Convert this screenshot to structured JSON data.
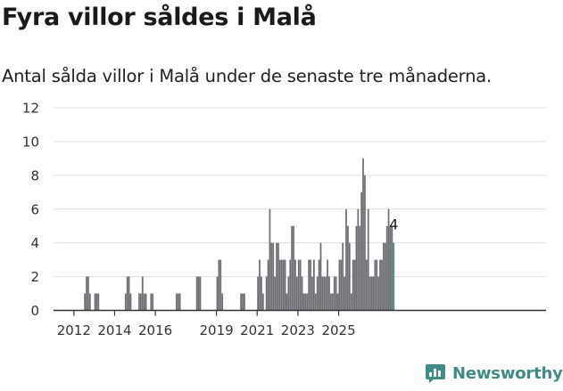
{
  "title": "Fyra villor såldes i Malå",
  "subtitle": "Antal sålda villor i Malå under de senaste tre månaderna.",
  "brand": {
    "name": "Newsworthy",
    "icon": "bar-chart-speech-bubble-icon"
  },
  "colors": {
    "bar": "#6d6e73",
    "highlight": "#3f8b85",
    "grid": "#dddddd",
    "axis": "#333333"
  },
  "chart_data": {
    "type": "bar",
    "x_start": "2011-01",
    "x_step": "month",
    "ylim": [
      0,
      12
    ],
    "y_ticks": [
      0,
      2,
      4,
      6,
      8,
      10,
      12
    ],
    "x_ticks": [
      "2012",
      "2014",
      "2016",
      "2019",
      "2021",
      "2023",
      "2025"
    ],
    "x_tick_positions": [
      "2012-01",
      "2014-01",
      "2016-01",
      "2019-01",
      "2021-01",
      "2023-01",
      "2025-01"
    ],
    "grid": true,
    "values": [
      0,
      0,
      0,
      0,
      0,
      0,
      0,
      0,
      0,
      0,
      0,
      0,
      0,
      0,
      0,
      0,
      0,
      0,
      1,
      2,
      2,
      1,
      0,
      0,
      1,
      1,
      1,
      0,
      0,
      0,
      0,
      0,
      0,
      0,
      0,
      0,
      0,
      0,
      0,
      0,
      0,
      0,
      1,
      2,
      2,
      1,
      0,
      0,
      0,
      0,
      1,
      1,
      2,
      1,
      1,
      0,
      0,
      1,
      1,
      0,
      0,
      0,
      0,
      0,
      0,
      0,
      0,
      0,
      0,
      0,
      0,
      0,
      1,
      1,
      1,
      0,
      0,
      0,
      0,
      0,
      0,
      0,
      0,
      0,
      2,
      2,
      2,
      0,
      0,
      0,
      0,
      0,
      0,
      0,
      0,
      0,
      2,
      3,
      3,
      1,
      0,
      0,
      0,
      0,
      0,
      0,
      0,
      0,
      0,
      0,
      1,
      1,
      1,
      0,
      0,
      0,
      0,
      0,
      0,
      0,
      2,
      3,
      2,
      1,
      0,
      2,
      3,
      6,
      4,
      4,
      2,
      4,
      4,
      3,
      3,
      3,
      3,
      1,
      2,
      3,
      5,
      5,
      3,
      2,
      3,
      3,
      2,
      1,
      1,
      1,
      3,
      3,
      2,
      3,
      1,
      2,
      3,
      4,
      2,
      2,
      2,
      3,
      2,
      1,
      1,
      2,
      2,
      1,
      3,
      3,
      4,
      2,
      6,
      5,
      4,
      1,
      3,
      3,
      5,
      6,
      5,
      7,
      9,
      8,
      3,
      6,
      2,
      2,
      2,
      3,
      3,
      2,
      3,
      3,
      4,
      4,
      5,
      6,
      5,
      5,
      4
    ],
    "annotation": {
      "label": "4",
      "value": 4
    }
  }
}
